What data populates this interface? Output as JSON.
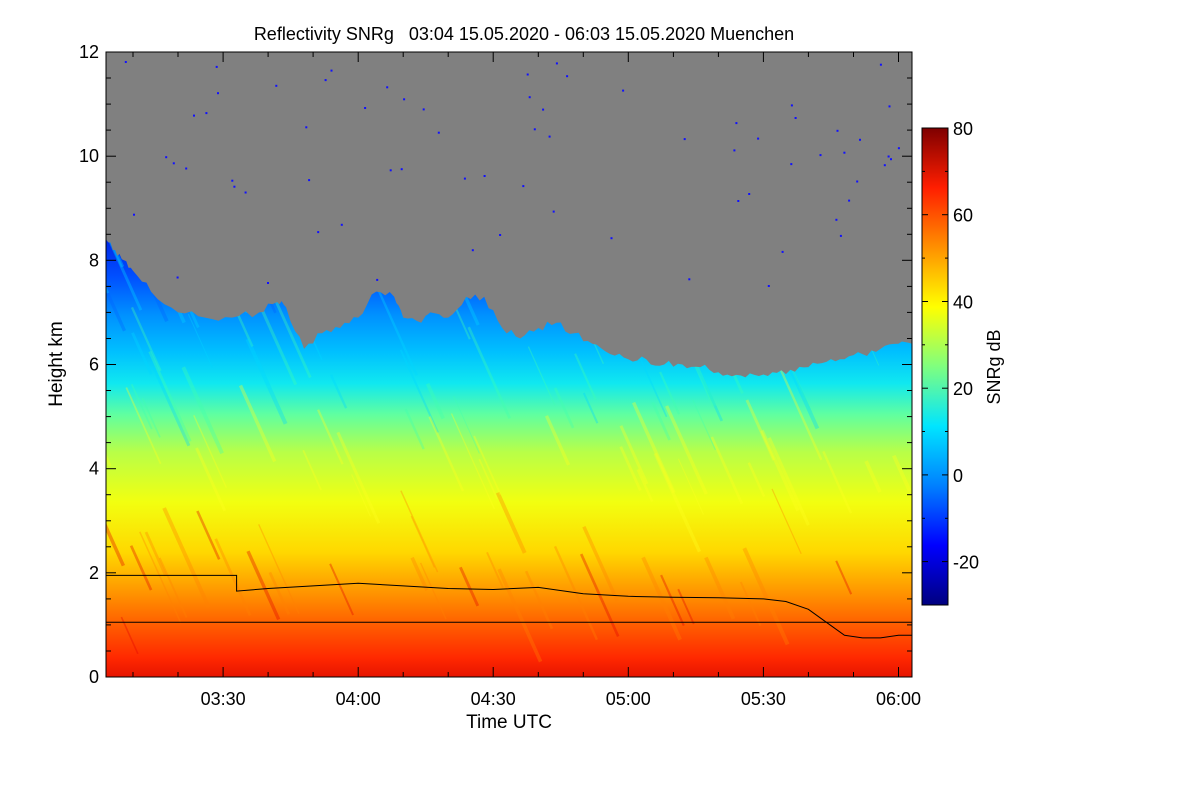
{
  "chart_data": {
    "type": "heatmap",
    "title": "Reflectivity SNRg   03:04 15.05.2020 - 06:03 15.05.2020 Muenchen",
    "xlabel": "Time UTC",
    "ylabel": "Height km",
    "x_range": [
      "03:04",
      "06:03"
    ],
    "x_ticks": [
      "03:30",
      "04:00",
      "04:30",
      "05:00",
      "05:30",
      "06:00"
    ],
    "ylim": [
      0,
      12
    ],
    "y_ticks": [
      "0",
      "2",
      "4",
      "6",
      "8",
      "10",
      "12"
    ],
    "no_data_color": "#808080",
    "colorbar": {
      "label": "SNRg dB",
      "range": [
        -30,
        80
      ],
      "ticks": [
        "-20",
        "0",
        "20",
        "40",
        "60",
        "80"
      ],
      "colormap": [
        "#00007f",
        "#0000ff",
        "#0080ff",
        "#00e5ff",
        "#7fff7f",
        "#ffff00",
        "#ff9000",
        "#ff1e00",
        "#7f0000"
      ]
    },
    "echo_top": {
      "times": [
        "03:04",
        "03:06",
        "03:08",
        "03:10",
        "03:14",
        "03:20",
        "03:26",
        "03:32",
        "03:38",
        "03:42",
        "03:44",
        "03:48",
        "03:52",
        "03:56",
        "04:00",
        "04:04",
        "04:08",
        "04:10",
        "04:14",
        "04:16",
        "04:20",
        "04:24",
        "04:28",
        "04:32",
        "04:36",
        "04:40",
        "04:44",
        "04:48",
        "04:52",
        "04:56",
        "05:00",
        "05:04",
        "05:08",
        "05:12",
        "05:16",
        "05:20",
        "05:24",
        "05:28",
        "05:32",
        "05:36",
        "05:40",
        "05:44",
        "05:48",
        "05:52",
        "05:56",
        "06:00",
        "06:03"
      ],
      "heights": [
        8.4,
        8.2,
        8.0,
        7.8,
        7.4,
        7.0,
        6.9,
        6.9,
        7.0,
        7.2,
        7.1,
        6.3,
        6.6,
        6.7,
        6.9,
        7.4,
        7.3,
        6.9,
        6.8,
        7.0,
        6.9,
        7.3,
        7.3,
        6.7,
        6.5,
        6.7,
        6.8,
        6.6,
        6.4,
        6.2,
        6.1,
        6.1,
        6.0,
        6.0,
        5.95,
        5.85,
        5.8,
        5.8,
        5.85,
        5.9,
        5.95,
        6.05,
        6.1,
        6.2,
        6.3,
        6.4,
        6.4
      ]
    },
    "mixing_layer_height": {
      "times": [
        "03:04",
        "03:33",
        "03:33",
        "03:40",
        "03:50",
        "04:00",
        "04:10",
        "04:20",
        "04:30",
        "04:40",
        "04:50",
        "05:00",
        "05:10",
        "05:20",
        "05:30",
        "05:35",
        "05:40",
        "05:44",
        "05:48",
        "05:52",
        "05:56",
        "06:00",
        "06:03"
      ],
      "heights": [
        1.95,
        1.95,
        1.65,
        1.7,
        1.75,
        1.8,
        1.75,
        1.7,
        1.68,
        1.72,
        1.6,
        1.55,
        1.53,
        1.52,
        1.5,
        1.45,
        1.3,
        1.05,
        0.8,
        0.75,
        0.75,
        0.8,
        0.8
      ]
    },
    "reference_line_height": 1.05,
    "grid": false,
    "legend": "none"
  }
}
